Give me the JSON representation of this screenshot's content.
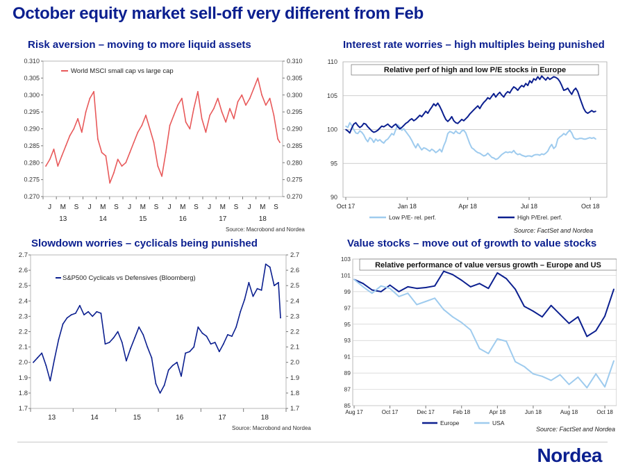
{
  "title": "October equity market sell-off very different from Feb",
  "logo": "Nordea",
  "colors": {
    "brand": "#0b1f8f",
    "red": "#e8595a",
    "navy": "#0b1f8f",
    "light": "#9ecbee"
  },
  "panels": [
    {
      "title": "Risk aversion – moving to more liquid assets",
      "source": "Source: Macrobond and Nordea"
    },
    {
      "title": "Interest rate worries – high multiples being punished",
      "source": "Source: FactSet and Nordea"
    },
    {
      "title": "Slowdown worries – cyclicals being punished",
      "source": "Source: Macrobond and Nordea"
    },
    {
      "title": "Value stocks – move out of growth to value stocks",
      "source": "Source: FactSet and Nordea"
    }
  ],
  "chart_data": [
    {
      "type": "line",
      "legend_position": "top-left",
      "ylim": [
        0.27,
        0.31
      ],
      "yticks": [
        "0.310",
        "0.305",
        "0.300",
        "0.295",
        "0.290",
        "0.285",
        "0.280",
        "0.275",
        "0.270"
      ],
      "x_month_ticks": [
        "J",
        "M",
        "S",
        "J",
        "M",
        "S",
        "J",
        "M",
        "S",
        "J",
        "M",
        "S",
        "J",
        "M",
        "S",
        "J",
        "M",
        "S"
      ],
      "x_year_ticks": [
        "13",
        "14",
        "15",
        "16",
        "17",
        "18"
      ],
      "series": [
        {
          "name": "World MSCI small cap vs large cap",
          "color": "#e8595a",
          "x": [
            2013.0,
            2013.1,
            2013.2,
            2013.3,
            2013.4,
            2013.5,
            2013.6,
            2013.7,
            2013.8,
            2013.9,
            2014.0,
            2014.1,
            2014.2,
            2014.3,
            2014.4,
            2014.5,
            2014.6,
            2014.7,
            2014.8,
            2014.9,
            2015.0,
            2015.1,
            2015.2,
            2015.3,
            2015.4,
            2015.5,
            2015.6,
            2015.7,
            2015.8,
            2015.9,
            2016.0,
            2016.1,
            2016.2,
            2016.3,
            2016.4,
            2016.5,
            2016.6,
            2016.7,
            2016.8,
            2016.9,
            2017.0,
            2017.1,
            2017.2,
            2017.3,
            2017.4,
            2017.5,
            2017.6,
            2017.7,
            2017.8,
            2017.9,
            2018.0,
            2018.1,
            2018.2,
            2018.3,
            2018.4,
            2018.5,
            2018.6,
            2018.7,
            2018.8,
            2018.85
          ],
          "values": [
            0.279,
            0.281,
            0.284,
            0.279,
            0.282,
            0.285,
            0.288,
            0.29,
            0.293,
            0.289,
            0.295,
            0.299,
            0.301,
            0.287,
            0.283,
            0.282,
            0.274,
            0.277,
            0.281,
            0.279,
            0.28,
            0.283,
            0.286,
            0.289,
            0.291,
            0.294,
            0.29,
            0.286,
            0.279,
            0.276,
            0.283,
            0.291,
            0.294,
            0.297,
            0.299,
            0.292,
            0.29,
            0.296,
            0.301,
            0.293,
            0.289,
            0.294,
            0.296,
            0.299,
            0.295,
            0.292,
            0.296,
            0.293,
            0.298,
            0.3,
            0.297,
            0.299,
            0.302,
            0.305,
            0.3,
            0.297,
            0.299,
            0.294,
            0.287,
            0.286
          ]
        }
      ]
    },
    {
      "type": "line",
      "title": "Relative perf of high and low P/E stocks in Europe",
      "legend_position": "bottom",
      "ylim": [
        90,
        110
      ],
      "yticks": [
        "110",
        "105",
        "100",
        "95",
        "90"
      ],
      "xticks": [
        "Oct 17",
        "Jan 18",
        "Apr 18",
        "Jul 18",
        "Oct 18"
      ],
      "series": [
        {
          "name": "Low P/E- rel. perf.",
          "color": "#9ecbee",
          "x": [
            0,
            3,
            6,
            9,
            12,
            15,
            18,
            21,
            24,
            27,
            30,
            33,
            36,
            39,
            42,
            45,
            48,
            51,
            54,
            57,
            60,
            63,
            66,
            69,
            72,
            75,
            78,
            81,
            84,
            87,
            90,
            93,
            96,
            99,
            102,
            105,
            108,
            111,
            114,
            117,
            120,
            123,
            126,
            129,
            132,
            135,
            138,
            141,
            144,
            147,
            150,
            153,
            156,
            159,
            162,
            165,
            168,
            171,
            174,
            177,
            180,
            183,
            186,
            189,
            192,
            195,
            198,
            201,
            204,
            207,
            210,
            213,
            216,
            219,
            222,
            225,
            228,
            231,
            234,
            237,
            240,
            243,
            246,
            249,
            252,
            255,
            258,
            261,
            264,
            267,
            270,
            273,
            276,
            279,
            282,
            285,
            288,
            291,
            294,
            297,
            300,
            303,
            306,
            309,
            312,
            315,
            318,
            321,
            324,
            327,
            330,
            333,
            336,
            339,
            342,
            345,
            348,
            351,
            354,
            357,
            360,
            363,
            366,
            369,
            372,
            375
          ],
          "values": [
            100.5,
            100.3,
            101,
            100.6,
            100,
            99.5,
            99.4,
            99.8,
            99.6,
            99.2,
            98.6,
            98.2,
            98.8,
            98.6,
            98.1,
            98.6,
            98.3,
            98.5,
            98.2,
            98,
            98.4,
            98.6,
            99,
            99.4,
            99.2,
            100,
            100.7,
            100.4,
            99.9,
            100.1,
            99.7,
            99.3,
            98.9,
            98.4,
            97.8,
            97.3,
            97.9,
            97.4,
            97,
            97.3,
            97.2,
            97,
            96.8,
            97.1,
            96.9,
            96.6,
            96.8,
            97.1,
            96.7,
            97.6,
            98.3,
            99.4,
            99.7,
            99.6,
            99.4,
            99.8,
            99.5,
            99.4,
            99.8,
            99.9,
            99.5,
            98.7,
            97.9,
            97.3,
            97.1,
            96.8,
            96.6,
            96.5,
            96.3,
            96.1,
            96.2,
            96.5,
            96.2,
            95.9,
            95.8,
            95.6,
            95.7,
            96,
            96.3,
            96.5,
            96.7,
            96.6,
            96.7,
            96.6,
            96.9,
            96.5,
            96.3,
            96.4,
            96.2,
            96.1,
            96,
            96.1,
            96.1,
            96,
            96.2,
            96.3,
            96.3,
            96.2,
            96.4,
            96.3,
            96.5,
            96.8,
            97.4,
            97.8,
            97.2,
            97.5,
            98.6,
            98.9,
            99.1,
            99.4,
            99.2,
            99.6,
            99.9,
            99.5,
            98.8,
            98.6,
            98.6,
            98.7,
            98.7,
            98.6,
            98.6,
            98.7,
            98.8,
            98.7,
            98.8,
            98.6
          ]
        },
        {
          "name": "High P/Erel. perf.",
          "color": "#0b1f8f",
          "x": [
            0,
            3,
            6,
            9,
            12,
            15,
            18,
            21,
            24,
            27,
            30,
            33,
            36,
            39,
            42,
            45,
            48,
            51,
            54,
            57,
            60,
            63,
            66,
            69,
            72,
            75,
            78,
            81,
            84,
            87,
            90,
            93,
            96,
            99,
            102,
            105,
            108,
            111,
            114,
            117,
            120,
            123,
            126,
            129,
            132,
            135,
            138,
            141,
            144,
            147,
            150,
            153,
            156,
            159,
            162,
            165,
            168,
            171,
            174,
            177,
            180,
            183,
            186,
            189,
            192,
            195,
            198,
            201,
            204,
            207,
            210,
            213,
            216,
            219,
            222,
            225,
            228,
            231,
            234,
            237,
            240,
            243,
            246,
            249,
            252,
            255,
            258,
            261,
            264,
            267,
            270,
            273,
            276,
            279,
            282,
            285,
            288,
            291,
            294,
            297,
            300,
            303,
            306,
            309,
            312,
            315,
            318,
            321,
            324,
            327,
            330,
            333,
            336,
            339,
            342,
            345,
            348,
            351,
            354,
            357,
            360,
            363,
            366,
            369,
            372,
            375
          ],
          "values": [
            100,
            99.8,
            99.5,
            100.2,
            100.8,
            101,
            100.6,
            100.3,
            100.5,
            100.9,
            100.8,
            100.4,
            100.1,
            99.8,
            99.6,
            99.7,
            99.9,
            100.2,
            100.5,
            100.4,
            100.6,
            100.8,
            100.5,
            100.3,
            100.6,
            100.8,
            100.4,
            100.1,
            100.3,
            100.6,
            100.9,
            101.1,
            101.4,
            101.6,
            101.3,
            101.5,
            101.8,
            102.1,
            101.9,
            102.3,
            102.7,
            102.4,
            102.9,
            103.3,
            103.8,
            103.5,
            103.9,
            103.4,
            102.8,
            102.1,
            101.5,
            101.2,
            101.5,
            101.9,
            101.3,
            101,
            100.9,
            101.2,
            101.5,
            101.3,
            101.6,
            101.9,
            102.3,
            102.6,
            102.9,
            103.2,
            103.5,
            103.1,
            103.6,
            104,
            104.3,
            104.7,
            104.5,
            104.9,
            105.3,
            104.8,
            105.2,
            105.5,
            105.1,
            104.8,
            105.3,
            105.6,
            105.4,
            105.9,
            106.3,
            106.1,
            105.8,
            106.2,
            106.5,
            106.3,
            106.8,
            106.5,
            107.2,
            106.9,
            107.5,
            107.3,
            107.8,
            107.4,
            107.9,
            107.6,
            107.3,
            107.7,
            107.4,
            107.6,
            107.8,
            107.7,
            107.5,
            107.1,
            106.5,
            105.8,
            105.9,
            106.1,
            105.6,
            105.2,
            105.8,
            106.1,
            105.6,
            104.7,
            103.9,
            103.1,
            102.6,
            102.4,
            102.6,
            102.8,
            102.6,
            102.7
          ]
        }
      ]
    },
    {
      "type": "line",
      "legend_position": "top-left",
      "ylim": [
        1.7,
        2.7
      ],
      "yticks": [
        "2.7",
        "2.6",
        "2.5",
        "2.4",
        "2.3",
        "2.2",
        "2.1",
        "2.0",
        "1.9",
        "1.8",
        "1.7"
      ],
      "x_year_ticks": [
        "13",
        "14",
        "15",
        "16",
        "17",
        "18"
      ],
      "series": [
        {
          "name": "S&P500 Cyclicals vs Defensives (Bloomberg)",
          "color": "#0b1f8f",
          "x": [
            2013.0,
            2013.1,
            2013.2,
            2013.3,
            2013.4,
            2013.5,
            2013.6,
            2013.7,
            2013.8,
            2013.9,
            2014.0,
            2014.1,
            2014.2,
            2014.3,
            2014.4,
            2014.5,
            2014.6,
            2014.7,
            2014.8,
            2014.9,
            2015.0,
            2015.1,
            2015.2,
            2015.3,
            2015.4,
            2015.5,
            2015.6,
            2015.7,
            2015.8,
            2015.9,
            2016.0,
            2016.1,
            2016.2,
            2016.3,
            2016.4,
            2016.5,
            2016.6,
            2016.7,
            2016.8,
            2016.9,
            2017.0,
            2017.1,
            2017.2,
            2017.3,
            2017.4,
            2017.5,
            2017.6,
            2017.7,
            2017.8,
            2017.9,
            2018.0,
            2018.1,
            2018.2,
            2018.3,
            2018.4,
            2018.5,
            2018.6,
            2018.7,
            2018.8,
            2018.85
          ],
          "values": [
            2.0,
            2.03,
            2.06,
            1.98,
            1.88,
            2.02,
            2.15,
            2.25,
            2.29,
            2.31,
            2.32,
            2.37,
            2.31,
            2.33,
            2.3,
            2.33,
            2.32,
            2.12,
            2.13,
            2.16,
            2.2,
            2.13,
            2.01,
            2.09,
            2.16,
            2.23,
            2.18,
            2.1,
            2.03,
            1.86,
            1.8,
            1.85,
            1.95,
            1.98,
            2.0,
            1.91,
            2.06,
            2.07,
            2.1,
            2.23,
            2.19,
            2.17,
            2.12,
            2.13,
            2.07,
            2.12,
            2.18,
            2.17,
            2.23,
            2.33,
            2.41,
            2.52,
            2.43,
            2.48,
            2.47,
            2.64,
            2.62,
            2.5,
            2.52,
            2.29
          ]
        }
      ]
    },
    {
      "type": "line",
      "title": "Relative performance of value versus growth – Europe and US",
      "legend_position": "bottom",
      "ylim": [
        85,
        103
      ],
      "yticks": [
        "103",
        "101",
        "99",
        "97",
        "95",
        "93",
        "91",
        "89",
        "87",
        "85"
      ],
      "xticks": [
        "Aug 17",
        "Oct 17",
        "Dec 17",
        "Feb 18",
        "Apr 18",
        "Jun 18",
        "Aug 18",
        "Oct 18"
      ],
      "series": [
        {
          "name": "Europe",
          "color": "#0b1f8f",
          "x": [
            0,
            0.5,
            1,
            1.5,
            2,
            2.5,
            3,
            3.5,
            4,
            4.5,
            5,
            5.5,
            6,
            6.5,
            7,
            7.5,
            8,
            8.5,
            9,
            9.5,
            10,
            10.5,
            11,
            11.5,
            12,
            12.5,
            13,
            13.5,
            14,
            14.5
          ],
          "values": [
            100.5,
            100,
            99.2,
            99,
            99.8,
            99,
            99.6,
            99.4,
            99.5,
            99.7,
            101.5,
            101.1,
            100.4,
            99.6,
            100,
            99.4,
            101.3,
            100.6,
            99.3,
            97.2,
            96.6,
            95.9,
            97.3,
            96.2,
            95.1,
            95.9,
            93.5,
            94.2,
            96,
            99.3
          ]
        },
        {
          "name": "USA",
          "color": "#9ecbee",
          "x": [
            0,
            0.5,
            1,
            1.5,
            2,
            2.5,
            3,
            3.5,
            4,
            4.5,
            5,
            5.5,
            6,
            6.5,
            7,
            7.5,
            8,
            8.5,
            9,
            9.5,
            10,
            10.5,
            11,
            11.5,
            12,
            12.5,
            13,
            13.5,
            14,
            14.5
          ],
          "values": [
            100.5,
            99.6,
            98.8,
            99.7,
            99.4,
            98.4,
            98.8,
            97.4,
            97.8,
            98.2,
            96.8,
            95.9,
            95.2,
            94.3,
            92,
            91.4,
            93.2,
            92.9,
            90.4,
            89.8,
            88.9,
            88.6,
            88.1,
            88.8,
            87.6,
            88.5,
            87.2,
            88.9,
            87.3,
            90.5
          ]
        }
      ]
    }
  ]
}
